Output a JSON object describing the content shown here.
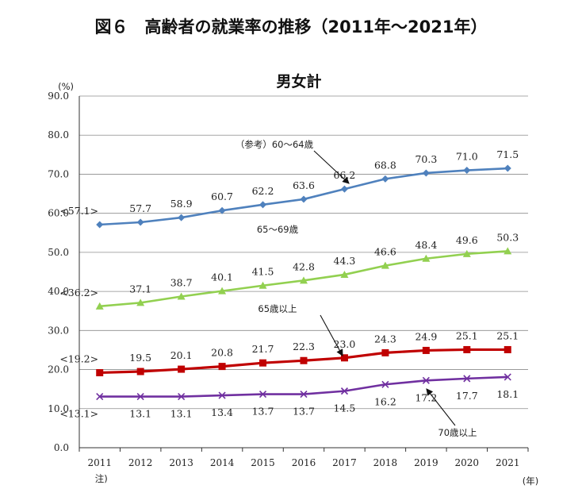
{
  "title": "図６　高齢者の就業率の推移（2011年～2021年）",
  "chart_data": {
    "type": "line",
    "title": "男女計",
    "ylabel": "(%)",
    "xlabel": "(年)",
    "ylim": [
      0,
      90
    ],
    "ytick_labels": [
      "0.0",
      "10.0",
      "20.0",
      "30.0",
      "40.0",
      "50.0",
      "60.0",
      "70.0",
      "80.0",
      "90.0"
    ],
    "categories": [
      "2011",
      "2012",
      "2013",
      "2014",
      "2015",
      "2016",
      "2017",
      "2018",
      "2019",
      "2020",
      "2021"
    ],
    "first_category_note": "注)",
    "grid": true,
    "series": [
      {
        "name": "（参考）60～64歳",
        "color": "#4f81bd",
        "marker": "diamond",
        "values": [
          57.1,
          57.7,
          58.9,
          60.7,
          62.2,
          63.6,
          66.2,
          68.8,
          70.3,
          71.0,
          71.5
        ],
        "labels": [
          "<57.1>",
          "57.7",
          "58.9",
          "60.7",
          "62.2",
          "63.6",
          "66.2",
          "68.8",
          "70.3",
          "71.0",
          "71.5"
        ]
      },
      {
        "name": "65～69歳",
        "color": "#92d050",
        "marker": "triangle",
        "values": [
          36.2,
          37.1,
          38.7,
          40.1,
          41.5,
          42.8,
          44.3,
          46.6,
          48.4,
          49.6,
          50.3
        ],
        "labels": [
          "<36.2>",
          "37.1",
          "38.7",
          "40.1",
          "41.5",
          "42.8",
          "44.3",
          "46.6",
          "48.4",
          "49.6",
          "50.3"
        ]
      },
      {
        "name": "65歳以上",
        "color": "#c00000",
        "marker": "square",
        "values": [
          19.2,
          19.5,
          20.1,
          20.8,
          21.7,
          22.3,
          23.0,
          24.3,
          24.9,
          25.1,
          25.1
        ],
        "labels": [
          "<19.2>",
          "19.5",
          "20.1",
          "20.8",
          "21.7",
          "22.3",
          "23.0",
          "24.3",
          "24.9",
          "25.1",
          "25.1"
        ]
      },
      {
        "name": "70歳以上",
        "color": "#7030a0",
        "marker": "x",
        "values": [
          13.1,
          13.1,
          13.1,
          13.4,
          13.7,
          13.7,
          14.5,
          16.2,
          17.2,
          17.7,
          18.1
        ],
        "labels": [
          "<13.1>",
          "13.1",
          "13.1",
          "13.4",
          "13.7",
          "13.7",
          "14.5",
          "16.2",
          "17.2",
          "17.7",
          "18.1"
        ]
      }
    ]
  }
}
